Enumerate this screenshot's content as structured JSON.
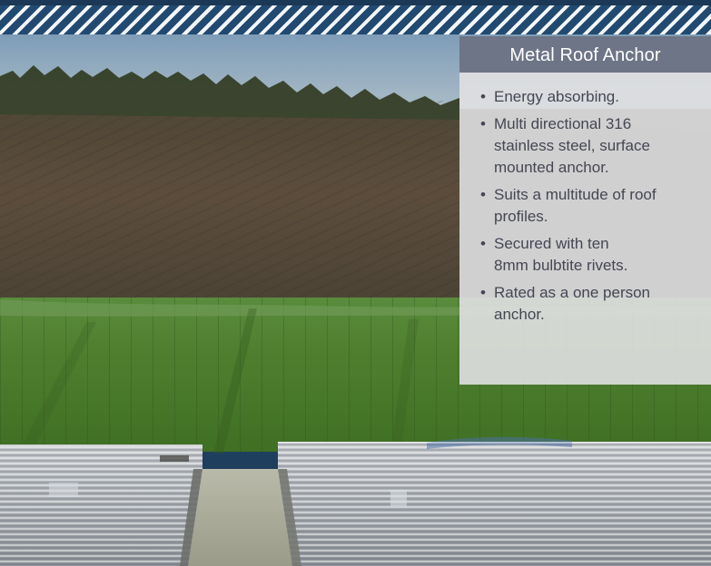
{
  "panel": {
    "title": "Metal Roof Anchor",
    "features": [
      {
        "lines": [
          "Energy absorbing."
        ]
      },
      {
        "lines": [
          "Multi directional 316",
          "stainless steel, surface",
          "mounted anchor."
        ]
      },
      {
        "lines": [
          "Suits a multitude of roof",
          "profiles."
        ]
      },
      {
        "lines": [
          "Secured with ten",
          "8mm bulbtite rivets."
        ]
      },
      {
        "lines": [
          "Rated as a one person",
          "anchor."
        ]
      }
    ]
  },
  "colors": {
    "header_blue": "#224a71",
    "panel_title_bg": "#6d7586",
    "panel_bg": "#e0e0e2",
    "panel_text": "#444752"
  },
  "icons": {
    "bullet": "bullet-dot-icon"
  }
}
